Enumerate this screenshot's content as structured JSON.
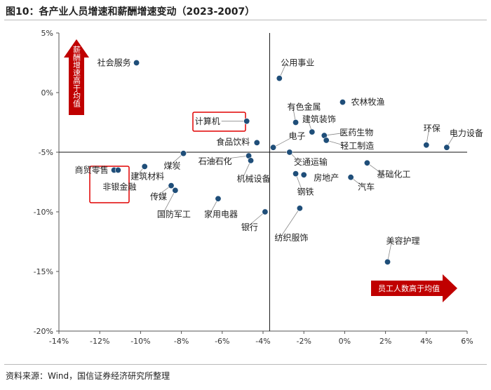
{
  "title": "图10：各产业人员增速和薪酬增速变动（2023-2007）",
  "source": "资料来源：Wind，国信证券经济研究所整理",
  "arrow_y_label": "薪酬增速高于均值",
  "arrow_x_label": "员工人数高于均值",
  "colors": {
    "point": "#1f4e79",
    "arrow": "#c00000",
    "highlight": "#e00000",
    "leader": "#888888"
  },
  "chart_data": {
    "type": "scatter",
    "title": "",
    "xlabel": "",
    "ylabel": "",
    "xlim": [
      -14,
      6
    ],
    "ylim": [
      -20,
      5
    ],
    "xticks": [
      -14,
      -12,
      -10,
      -8,
      -6,
      -4,
      -2,
      0,
      2,
      4,
      6
    ],
    "xtick_labels": [
      "-14%",
      "-12%",
      "-10%",
      "-8%",
      "-6%",
      "-4%",
      "-2%",
      "0%",
      "2%",
      "4%",
      "6%"
    ],
    "yticks": [
      5,
      0,
      -5,
      -10,
      -15,
      -20
    ],
    "ytick_labels": [
      "5%",
      "0%",
      "-5%",
      "-10%",
      "-15%",
      "-20%"
    ],
    "grid": false,
    "points": [
      {
        "label": "社会服务",
        "x": -10.2,
        "y": 2.5
      },
      {
        "label": "公用事业",
        "x": -3.2,
        "y": 1.2
      },
      {
        "label": "农林牧渔",
        "x": -0.1,
        "y": -0.8
      },
      {
        "label": "有色金属",
        "x": -2.4,
        "y": -2.5
      },
      {
        "label": "建筑装饰",
        "x": -1.6,
        "y": -3.3
      },
      {
        "label": "医药生物",
        "x": -1.0,
        "y": -3.6
      },
      {
        "label": "环保",
        "x": 4.0,
        "y": -4.4
      },
      {
        "label": "电力设备",
        "x": 5.0,
        "y": -4.6
      },
      {
        "label": "计算机",
        "x": -4.8,
        "y": -2.4
      },
      {
        "label": "电子",
        "x": -3.5,
        "y": -4.6
      },
      {
        "label": "食品饮料",
        "x": -4.3,
        "y": -4.2
      },
      {
        "label": "轻工制造",
        "x": -0.9,
        "y": -4.0
      },
      {
        "label": "交通运输",
        "x": -2.7,
        "y": -5.0
      },
      {
        "label": "石油石化",
        "x": -4.7,
        "y": -5.3
      },
      {
        "label": "机械设备",
        "x": -4.6,
        "y": -5.7
      },
      {
        "label": "煤炭",
        "x": -7.9,
        "y": -5.1
      },
      {
        "label": "基础化工",
        "x": 1.1,
        "y": -5.9
      },
      {
        "label": "房地产",
        "x": -2.0,
        "y": -6.9
      },
      {
        "label": "钢铁",
        "x": -2.4,
        "y": -6.8
      },
      {
        "label": "汽车",
        "x": 0.3,
        "y": -7.1
      },
      {
        "label": "商贸零售",
        "x": -11.3,
        "y": -6.5
      },
      {
        "label": "非银金融",
        "x": -11.1,
        "y": -6.5
      },
      {
        "label": "建筑材料",
        "x": -9.8,
        "y": -6.2
      },
      {
        "label": "传媒",
        "x": -8.5,
        "y": -7.8
      },
      {
        "label": "国防军工",
        "x": -8.3,
        "y": -8.2
      },
      {
        "label": "家用电器",
        "x": -6.2,
        "y": -8.9
      },
      {
        "label": "银行",
        "x": -3.9,
        "y": -10.0
      },
      {
        "label": "纺织服饰",
        "x": -2.2,
        "y": -9.7
      },
      {
        "label": "美容护理",
        "x": 2.1,
        "y": -14.2
      }
    ]
  }
}
